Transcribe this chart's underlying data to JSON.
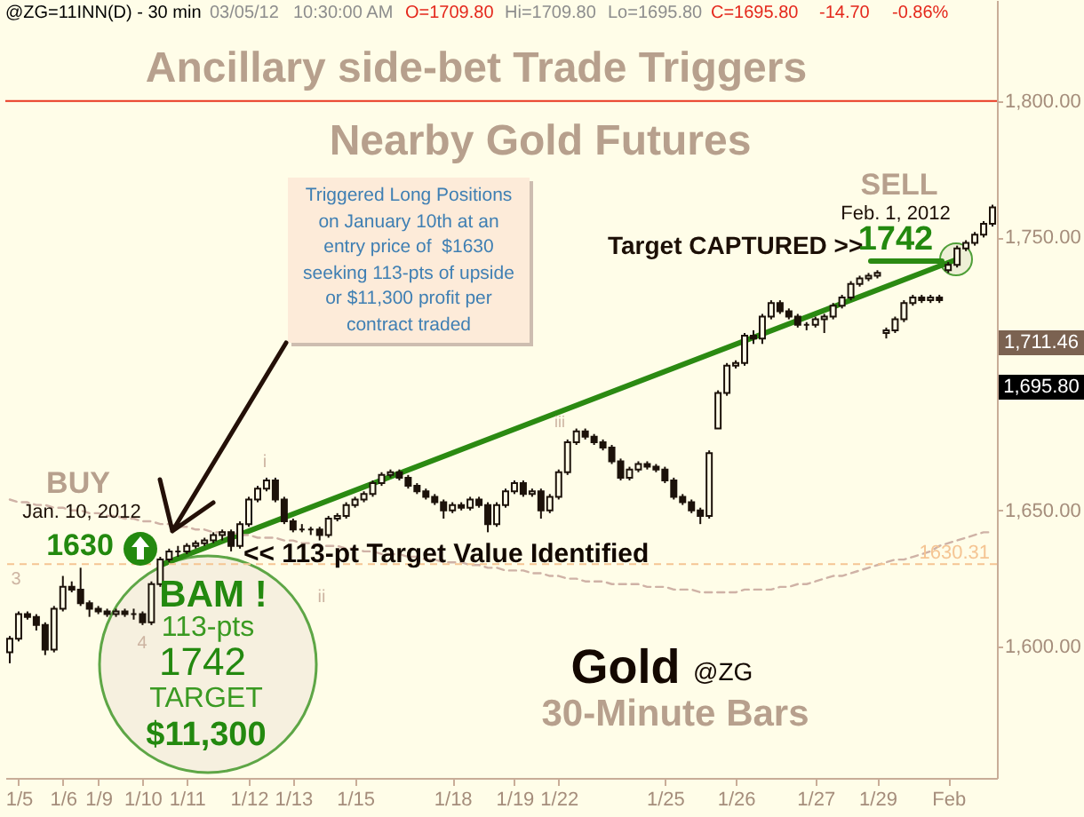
{
  "chart_data": {
    "type": "candlestick",
    "title": "Ancillary side-bet Trade Triggers",
    "subtitle": "Nearby Gold Futures",
    "categories": [
      null,
      "1/5",
      null,
      null,
      null,
      null,
      "1/6",
      null,
      null,
      null,
      "1/9",
      null,
      null,
      null,
      null,
      "1/10",
      null,
      null,
      null,
      null,
      "1/11",
      null,
      null,
      null,
      null,
      null,
      null,
      "1/12",
      null,
      null,
      null,
      null,
      "1/13",
      null,
      null,
      null,
      null,
      null,
      null,
      "1/15",
      null,
      null,
      null,
      null,
      null,
      null,
      null,
      null,
      null,
      null,
      "1/18",
      null,
      null,
      null,
      null,
      null,
      null,
      "1/19",
      null,
      null,
      null,
      null,
      "1/22",
      null,
      null,
      null,
      null,
      null,
      null,
      null,
      null,
      null,
      null,
      null,
      "1/25",
      null,
      null,
      null,
      null,
      null,
      null,
      null,
      "1/26",
      null,
      null,
      null,
      null,
      null,
      null,
      null,
      null,
      "1/27",
      null,
      null,
      null,
      null,
      null,
      null,
      "1/29",
      null,
      null,
      null,
      null,
      null,
      null,
      null,
      "Feb",
      null,
      null,
      null,
      null,
      null
    ],
    "color": "#1c120a",
    "ohlc": [
      [
        1598,
        1604,
        1594,
        1603
      ],
      [
        1603,
        1613,
        1602,
        1612
      ],
      [
        1612,
        1613,
        1610,
        1611
      ],
      [
        1611,
        1612,
        1606,
        1608
      ],
      [
        1608,
        1609,
        1597,
        1599
      ],
      [
        1599,
        1615,
        1598,
        1614
      ],
      [
        1614,
        1626,
        1613,
        1622
      ],
      [
        1622,
        1624,
        1620,
        1621
      ],
      [
        1621,
        1629,
        1615,
        1616
      ],
      [
        1616,
        1617,
        1611,
        1614
      ],
      [
        1614,
        1615,
        1612,
        1613
      ],
      [
        1613,
        1614,
        1611,
        1612
      ],
      [
        1612,
        1614,
        1611,
        1613
      ],
      [
        1613,
        1614,
        1611,
        1612
      ],
      [
        1612,
        1614,
        1610,
        1612
      ],
      [
        1612,
        1613,
        1608,
        1609
      ],
      [
        1609,
        1624,
        1608,
        1623
      ],
      [
        1623,
        1633,
        1622,
        1632
      ],
      [
        1632,
        1636,
        1631,
        1635
      ],
      [
        1635,
        1637,
        1633,
        1635
      ],
      [
        1635,
        1638,
        1634,
        1637
      ],
      [
        1637,
        1639,
        1636,
        1638
      ],
      [
        1638,
        1640,
        1637,
        1639
      ],
      [
        1639,
        1642,
        1638,
        1641
      ],
      [
        1641,
        1643,
        1639,
        1642
      ],
      [
        1642,
        1643,
        1635,
        1637
      ],
      [
        1637,
        1646,
        1636,
        1645
      ],
      [
        1645,
        1655,
        1644,
        1654
      ],
      [
        1654,
        1659,
        1653,
        1658
      ],
      [
        1658,
        1662,
        1657,
        1661
      ],
      [
        1661,
        1662,
        1653,
        1654
      ],
      [
        1654,
        1655,
        1645,
        1646
      ],
      [
        1646,
        1647,
        1642,
        1643
      ],
      [
        1643,
        1645,
        1642,
        1643
      ],
      [
        1643,
        1644,
        1641,
        1643
      ],
      [
        1643,
        1644,
        1639,
        1641
      ],
      [
        1641,
        1648,
        1640,
        1647
      ],
      [
        1647,
        1649,
        1646,
        1648
      ],
      [
        1648,
        1653,
        1647,
        1652
      ],
      [
        1652,
        1655,
        1651,
        1654
      ],
      [
        1654,
        1657,
        1653,
        1656
      ],
      [
        1656,
        1661,
        1655,
        1660
      ],
      [
        1660,
        1664,
        1659,
        1663
      ],
      [
        1663,
        1665,
        1662,
        1664
      ],
      [
        1664,
        1665,
        1661,
        1662
      ],
      [
        1662,
        1663,
        1658,
        1659
      ],
      [
        1659,
        1660,
        1656,
        1657
      ],
      [
        1657,
        1658,
        1654,
        1655
      ],
      [
        1655,
        1656,
        1652,
        1653
      ],
      [
        1653,
        1654,
        1647,
        1650
      ],
      [
        1650,
        1653,
        1649,
        1652
      ],
      [
        1652,
        1653,
        1650,
        1651
      ],
      [
        1651,
        1655,
        1650,
        1654
      ],
      [
        1654,
        1655,
        1651,
        1652
      ],
      [
        1652,
        1653,
        1642,
        1645
      ],
      [
        1645,
        1653,
        1644,
        1652
      ],
      [
        1652,
        1658,
        1651,
        1657
      ],
      [
        1657,
        1661,
        1656,
        1660
      ],
      [
        1660,
        1661,
        1655,
        1656
      ],
      [
        1656,
        1658,
        1655,
        1657
      ],
      [
        1657,
        1658,
        1647,
        1650
      ],
      [
        1650,
        1656,
        1649,
        1655
      ],
      [
        1655,
        1665,
        1654,
        1664
      ],
      [
        1664,
        1676,
        1663,
        1675
      ],
      [
        1675,
        1680,
        1674,
        1679
      ],
      [
        1679,
        1680,
        1676,
        1677
      ],
      [
        1677,
        1678,
        1674,
        1675
      ],
      [
        1675,
        1676,
        1672,
        1673
      ],
      [
        1673,
        1674,
        1667,
        1668
      ],
      [
        1668,
        1669,
        1661,
        1662
      ],
      [
        1662,
        1666,
        1661,
        1665
      ],
      [
        1665,
        1668,
        1664,
        1667
      ],
      [
        1667,
        1668,
        1665,
        1666
      ],
      [
        1666,
        1667,
        1664,
        1665
      ],
      [
        1665,
        1666,
        1660,
        1661
      ],
      [
        1661,
        1662,
        1654,
        1655
      ],
      [
        1655,
        1656,
        1652,
        1653
      ],
      [
        1653,
        1654,
        1649,
        1650
      ],
      [
        1650,
        1651,
        1645,
        1648
      ],
      [
        1648,
        1672,
        1647,
        1671
      ],
      [
        1680,
        1694,
        1680,
        1693
      ],
      [
        1693,
        1704,
        1692,
        1703
      ],
      [
        1703,
        1705,
        1702,
        1704
      ],
      [
        1704,
        1715,
        1703,
        1714
      ],
      [
        1714,
        1716,
        1711,
        1713
      ],
      [
        1713,
        1722,
        1711,
        1721
      ],
      [
        1721,
        1727,
        1720,
        1726
      ],
      [
        1726,
        1727,
        1722,
        1723
      ],
      [
        1723,
        1724,
        1720,
        1721
      ],
      [
        1721,
        1722,
        1717,
        1718
      ],
      [
        1718,
        1719,
        1716,
        1718
      ],
      [
        1718,
        1721,
        1717,
        1720
      ],
      [
        1720,
        1722,
        1715,
        1721
      ],
      [
        1721,
        1726,
        1720,
        1725
      ],
      [
        1725,
        1729,
        1724,
        1728
      ],
      [
        1728,
        1734,
        1727,
        1733
      ],
      [
        1733,
        1736,
        1732,
        1735
      ],
      [
        1735,
        1737,
        1734,
        1736
      ],
      [
        1736,
        1738,
        1735,
        1737
      ],
      [
        1715,
        1717,
        1713,
        1716
      ],
      [
        1716,
        1721,
        1715,
        1720
      ],
      [
        1720,
        1727,
        1719,
        1726
      ],
      [
        1726,
        1729,
        1725,
        1728
      ],
      [
        1728,
        1729,
        1726,
        1727
      ],
      [
        1727,
        1729,
        1726,
        1728
      ],
      [
        1728,
        1729,
        1726,
        1727
      ],
      [
        1738,
        1741,
        1737,
        1740
      ],
      [
        1740,
        1747,
        1739,
        1746
      ],
      [
        1746,
        1749,
        1745,
        1748
      ],
      [
        1748,
        1752,
        1747,
        1751
      ],
      [
        1751,
        1756,
        1750,
        1755
      ],
      [
        1755,
        1762,
        1754,
        1761
      ]
    ],
    "series": [
      {
        "type": "line",
        "color": "#2b8a12",
        "values": [
          null,
          null,
          null,
          null,
          null,
          null,
          null,
          null,
          null,
          null,
          null,
          null,
          null,
          null,
          null,
          null,
          null,
          1630,
          null,
          null,
          null,
          null,
          null,
          null,
          null,
          null,
          null,
          null,
          null,
          null,
          null,
          null,
          null,
          null,
          null,
          null,
          null,
          null,
          null,
          null,
          null,
          null,
          null,
          null,
          null,
          null,
          null,
          null,
          null,
          null,
          null,
          null,
          null,
          null,
          null,
          null,
          null,
          null,
          null,
          null,
          null,
          null,
          null,
          null,
          null,
          null,
          null,
          null,
          null,
          null,
          null,
          null,
          null,
          null,
          null,
          null,
          null,
          null,
          null,
          null,
          null,
          null,
          null,
          null,
          null,
          null,
          null,
          null,
          null,
          null,
          null,
          null,
          null,
          null,
          null,
          null,
          null,
          null,
          null,
          null,
          null,
          null,
          null,
          null,
          null,
          null,
          null,
          1742,
          null,
          null,
          null,
          null
        ]
      },
      {
        "type": "line",
        "color": "#cfb2a6",
        "line_style": "dashed",
        "values": [
          1654,
          1653,
          1653,
          1652,
          1652,
          1651,
          1651,
          1650,
          1650,
          1649,
          1649,
          1648,
          1648,
          1647,
          1647,
          1646,
          1646,
          1645,
          1645,
          1644,
          1644,
          1643,
          1643,
          1642,
          1642,
          1642,
          1641,
          1641,
          1640,
          1640,
          1640,
          1639,
          1639,
          1638,
          1638,
          1637,
          1637,
          1637,
          1636,
          1636,
          1635,
          1635,
          1634,
          1634,
          1634,
          1633,
          1633,
          1632,
          1632,
          1631,
          1631,
          1631,
          1630,
          1630,
          1629,
          1629,
          1628,
          1628,
          1628,
          1627,
          1627,
          1626,
          1626,
          1625,
          1625,
          1624,
          1624,
          1624,
          1623,
          1623,
          1623,
          1623,
          1622,
          1622,
          1622,
          1621,
          1621,
          1621,
          1620,
          1620,
          1620,
          1620,
          1620,
          1621,
          1621,
          1621,
          1621,
          1622,
          1622,
          1623,
          1623,
          1624,
          1625,
          1626,
          1626,
          1627,
          1628,
          1629,
          1630,
          1631,
          1632,
          1632,
          1633,
          1634,
          1635,
          1637,
          1638,
          1639,
          1640,
          1641,
          1642,
          1642
        ]
      }
    ],
    "ylim": [
      1552,
      1837
    ],
    "yticks": [
      {
        "value": 1600,
        "label": "1,600.00"
      },
      {
        "value": 1650,
        "label": "1,650.00"
      },
      {
        "value": 1700,
        "label": null
      },
      {
        "value": 1750,
        "label": "1,750.00"
      },
      {
        "value": 1800,
        "label": "1,800.00"
      }
    ],
    "ref_lines": [
      {
        "axis": "y",
        "value": 1800,
        "color": "#e8361f"
      },
      {
        "axis": "y",
        "value": 1630.31,
        "label": "1630.31",
        "color": "#f5c593",
        "line_style": "dashed"
      }
    ],
    "annotations": [
      "@ZG=11INN(D) - 30 min",
      "03/05/12",
      "10:30:00 AM",
      "O=1709.80",
      "Hi=1709.80",
      "Lo=1695.80",
      "C=1695.80",
      "-14.70",
      "-0.86%",
      "Triggered Long Positions\non January 10th at an\nentry price of  $1630\nseeking 113-pts of upside\nor $11,300 profit per\ncontract traded",
      "BUY",
      "Jan. 10, 2012",
      "1630",
      "BAM !",
      "113-pts",
      "1742",
      "TARGET",
      "$11,300",
      "<< 113-pt Target Value Identified",
      "SELL",
      "Feb. 1, 2012",
      "Target CAPTURED >>",
      "1742",
      "Gold",
      "@ZG",
      "30-Minute Bars",
      "3",
      "4",
      "i",
      "ii",
      "iii",
      "1,711.46",
      "1,695.80"
    ]
  }
}
